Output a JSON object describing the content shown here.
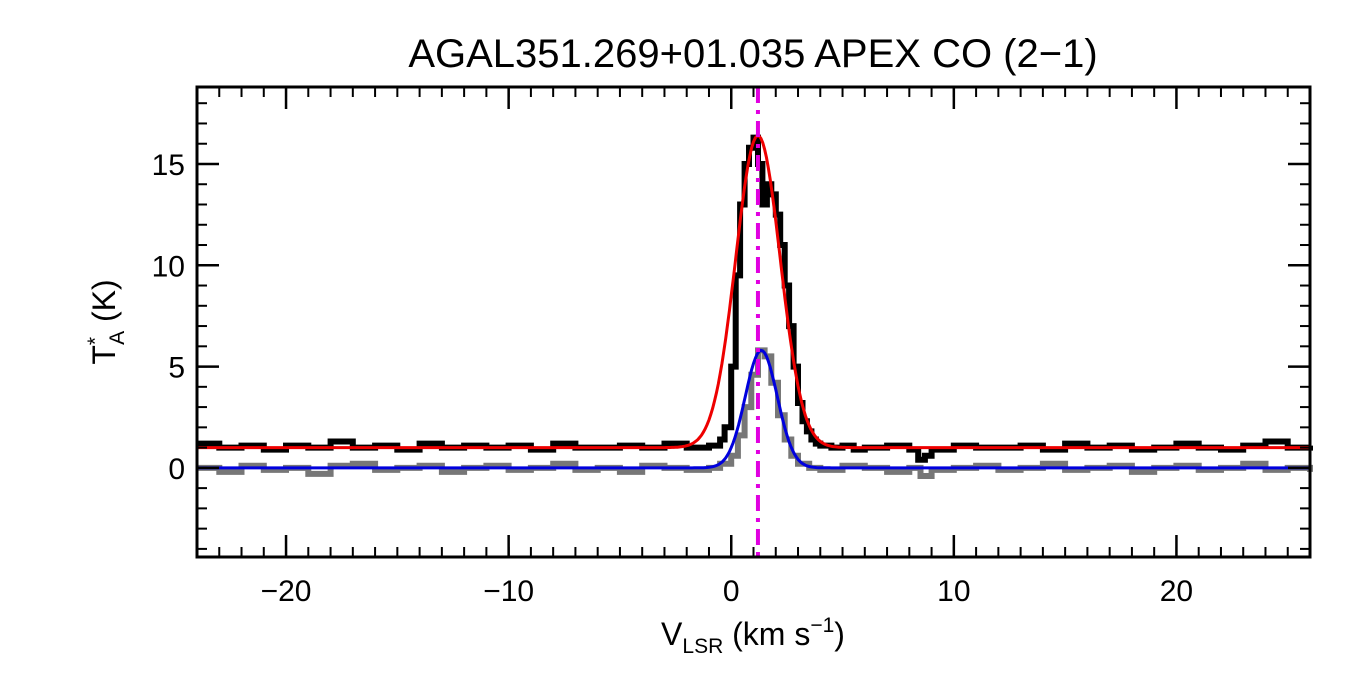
{
  "chart_data": {
    "type": "line",
    "title": "AGAL351.269+01.035  APEX CO (2−1)",
    "xlabel": {
      "main": "V",
      "sub": "LSR",
      "unit_pre": " (km s",
      "sup": "−1",
      "unit_post": ")"
    },
    "ylabel": {
      "main": "T",
      "sup": "*",
      "sub": "A",
      "unit": " (K)"
    },
    "xlim": [
      -24,
      26
    ],
    "ylim": [
      -4.4,
      18.8
    ],
    "xticks": [
      -20,
      -10,
      0,
      10,
      20
    ],
    "xtick_labels": [
      "−20",
      "−10",
      "0",
      "10",
      "20"
    ],
    "yticks": [
      0,
      5,
      10,
      15
    ],
    "ytick_labels": [
      "0",
      "5",
      "10",
      "15"
    ],
    "x_minor_step": 1,
    "y_minor_step": 1,
    "grid": false,
    "vline": {
      "x": 1.2,
      "color": "#e000e0",
      "style": "dash-dot"
    },
    "series": [
      {
        "kind": "histogram",
        "color": "#000000",
        "x": [
          -24,
          -23,
          -22,
          -21,
          -20,
          -19,
          -18,
          -17,
          -16,
          -15,
          -14,
          -13,
          -12,
          -11,
          -10,
          -9,
          -8,
          -7,
          -6,
          -5,
          -4,
          -3,
          -2,
          -1.5,
          -1,
          -0.5,
          -0.3,
          0,
          0.2,
          0.4,
          0.6,
          0.8,
          1,
          1.2,
          1.4,
          1.6,
          1.8,
          2,
          2.2,
          2.4,
          2.6,
          2.8,
          3,
          3.2,
          3.4,
          3.6,
          3.8,
          4,
          4.5,
          5,
          5.5,
          6,
          7,
          8,
          8.4,
          8.7,
          9,
          10,
          11,
          12,
          13,
          14,
          15,
          16,
          17,
          18,
          19,
          20,
          21,
          22,
          23,
          24,
          25,
          26
        ],
        "y": [
          1.2,
          1.0,
          1.1,
          0.9,
          1.1,
          1.0,
          1.3,
          1.0,
          1.1,
          0.9,
          1.2,
          1.0,
          1.1,
          1.0,
          1.1,
          0.9,
          1.2,
          1.0,
          1.0,
          1.1,
          1.0,
          1.2,
          1.0,
          1.0,
          1.1,
          1.4,
          2.0,
          5.0,
          9.5,
          13.0,
          15.0,
          15.8,
          16.3,
          15.0,
          13.0,
          14.0,
          13.5,
          12.5,
          11.0,
          9.0,
          7.0,
          5.0,
          3.2,
          2.3,
          1.8,
          1.4,
          1.2,
          1.1,
          1.0,
          1.1,
          0.9,
          1.0,
          1.1,
          0.9,
          0.4,
          0.6,
          0.9,
          1.1,
          1.0,
          1.0,
          1.1,
          0.9,
          1.2,
          1.0,
          1.1,
          0.9,
          1.0,
          1.2,
          1.0,
          0.9,
          1.1,
          1.3,
          1.0,
          1.1
        ]
      },
      {
        "kind": "histogram",
        "color": "#777777",
        "x": [
          -24,
          -23,
          -22,
          -21,
          -20,
          -19,
          -18,
          -17,
          -16,
          -15,
          -14,
          -13,
          -12,
          -11,
          -10,
          -9,
          -8,
          -7,
          -6,
          -5,
          -4,
          -3,
          -2,
          -1,
          -0.5,
          0,
          0.3,
          0.6,
          0.9,
          1.2,
          1.5,
          1.8,
          2.1,
          2.4,
          2.7,
          3,
          3.5,
          4,
          5,
          6,
          7,
          8,
          8.5,
          9,
          10,
          11,
          12,
          13,
          14,
          15,
          16,
          17,
          18,
          19,
          20,
          21,
          22,
          23,
          24,
          25,
          26
        ],
        "y": [
          0.0,
          -0.2,
          0.1,
          -0.1,
          0.0,
          -0.3,
          0.1,
          0.2,
          -0.1,
          0.0,
          0.1,
          -0.2,
          0.0,
          0.1,
          -0.1,
          0.0,
          0.2,
          -0.1,
          0.0,
          -0.2,
          0.1,
          0.0,
          -0.1,
          0.0,
          0.2,
          0.6,
          1.6,
          3.0,
          4.6,
          5.8,
          5.5,
          4.2,
          2.6,
          1.4,
          0.6,
          0.2,
          0.0,
          -0.1,
          0.1,
          0.0,
          -0.2,
          0.0,
          -0.4,
          -0.1,
          0.0,
          0.1,
          -0.1,
          0.0,
          0.2,
          -0.1,
          0.0,
          0.1,
          -0.2,
          0.0,
          0.1,
          -0.1,
          0.0,
          0.2,
          -0.1,
          0.0,
          -0.2
        ]
      },
      {
        "kind": "gaussian",
        "color": "#ee0000",
        "amplitude": 15.4,
        "center": 1.2,
        "sigma": 1.0,
        "baseline": 1.0
      },
      {
        "kind": "gaussian",
        "color": "#0000dd",
        "amplitude": 5.8,
        "center": 1.35,
        "sigma": 0.72,
        "baseline": 0.0
      }
    ]
  }
}
